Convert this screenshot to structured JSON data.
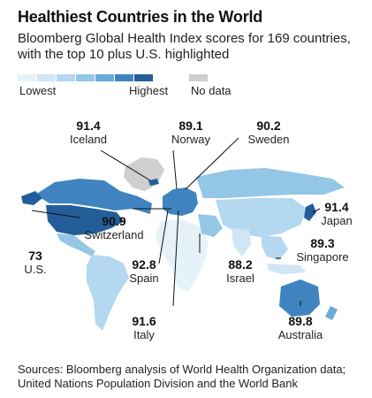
{
  "title": "Healthiest Countries in the World",
  "subtitle": "Bloomberg Global Health Index scores for 169 countries, with the top 10 plus U.S. highlighted",
  "legend": {
    "low_label": "Lowest",
    "high_label": "Highest",
    "nodata_label": "No data",
    "colors": [
      "#e6f2fa",
      "#cfe6f5",
      "#b4d8ef",
      "#94c6e6",
      "#6aaad7",
      "#3f84c0",
      "#235e9a"
    ],
    "nodata_color": "#cfcfcf"
  },
  "highlights": [
    {
      "country": "Iceland",
      "score": "91.4"
    },
    {
      "country": "Norway",
      "score": "89.1"
    },
    {
      "country": "Sweden",
      "score": "90.2"
    },
    {
      "country": "Switzerland",
      "score": "90.9"
    },
    {
      "country": "Japan",
      "score": "91.4"
    },
    {
      "country": "U.S.",
      "score": "73"
    },
    {
      "country": "Singapore",
      "score": "89.3"
    },
    {
      "country": "Spain",
      "score": "92.8"
    },
    {
      "country": "Israel",
      "score": "88.2"
    },
    {
      "country": "Italy",
      "score": "91.6"
    },
    {
      "country": "Australia",
      "score": "89.8"
    }
  ],
  "source": "Sources: Bloomberg analysis of World Health Organization data; United Nations Population Division and the World Bank"
}
